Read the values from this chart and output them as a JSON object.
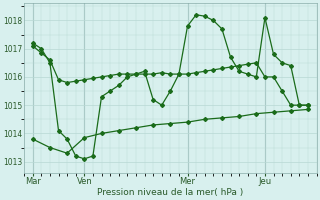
{
  "bg_color": "#d8f0ee",
  "grid_color": "#b8d8d4",
  "line_color": "#1a6b1a",
  "marker_color": "#1a6b1a",
  "xlabel": "Pression niveau de la mer( hPa )",
  "xlabel_color": "#2a5a2a",
  "tick_color": "#2a5a2a",
  "ylim": [
    1012.6,
    1018.6
  ],
  "yticks": [
    1013,
    1014,
    1015,
    1016,
    1017,
    1018
  ],
  "xtick_labels": [
    "Mar",
    "Ven",
    "Mer",
    "Jeu"
  ],
  "xtick_positions": [
    0,
    24,
    72,
    108
  ],
  "vlines_x": [
    0,
    24,
    72,
    108
  ],
  "xlim": [
    -4,
    132
  ],
  "line1_x": [
    0,
    4,
    8,
    12,
    16,
    20,
    24,
    28,
    32,
    36,
    40,
    44,
    48,
    52,
    56,
    60,
    64,
    68,
    72,
    76,
    80,
    84,
    88,
    92,
    96,
    100,
    104,
    108,
    112,
    116,
    120,
    124,
    128
  ],
  "line1_y": [
    1017.1,
    1016.85,
    1016.6,
    1015.9,
    1015.8,
    1015.85,
    1015.9,
    1015.95,
    1016.0,
    1016.05,
    1016.1,
    1016.1,
    1016.1,
    1016.1,
    1016.1,
    1016.15,
    1016.1,
    1016.1,
    1016.1,
    1016.15,
    1016.2,
    1016.25,
    1016.3,
    1016.35,
    1016.4,
    1016.45,
    1016.5,
    1016.0,
    1016.0,
    1015.5,
    1015.0,
    1015.0,
    1015.0
  ],
  "line2_x": [
    0,
    4,
    8,
    12,
    16,
    20,
    24,
    28,
    32,
    36,
    40,
    44,
    48,
    52,
    56,
    60,
    64,
    68,
    72,
    76,
    80,
    84,
    88,
    92,
    96,
    100,
    104,
    108,
    112,
    116,
    120,
    124,
    128
  ],
  "line2_y": [
    1017.2,
    1017.0,
    1016.5,
    1014.1,
    1013.8,
    1013.2,
    1013.1,
    1013.2,
    1015.3,
    1015.5,
    1015.7,
    1016.0,
    1016.1,
    1016.2,
    1015.2,
    1015.0,
    1015.5,
    1016.1,
    1017.8,
    1018.2,
    1018.15,
    1018.0,
    1017.7,
    1016.7,
    1016.2,
    1016.1,
    1016.0,
    1018.1,
    1016.8,
    1016.5,
    1016.4,
    1015.0,
    1015.0
  ],
  "line3_x": [
    0,
    8,
    16,
    24,
    32,
    40,
    48,
    56,
    64,
    72,
    80,
    88,
    96,
    104,
    112,
    120,
    128
  ],
  "line3_y": [
    1013.8,
    1013.5,
    1013.3,
    1013.85,
    1014.0,
    1014.1,
    1014.2,
    1014.3,
    1014.35,
    1014.4,
    1014.5,
    1014.55,
    1014.6,
    1014.7,
    1014.75,
    1014.8,
    1014.85
  ]
}
